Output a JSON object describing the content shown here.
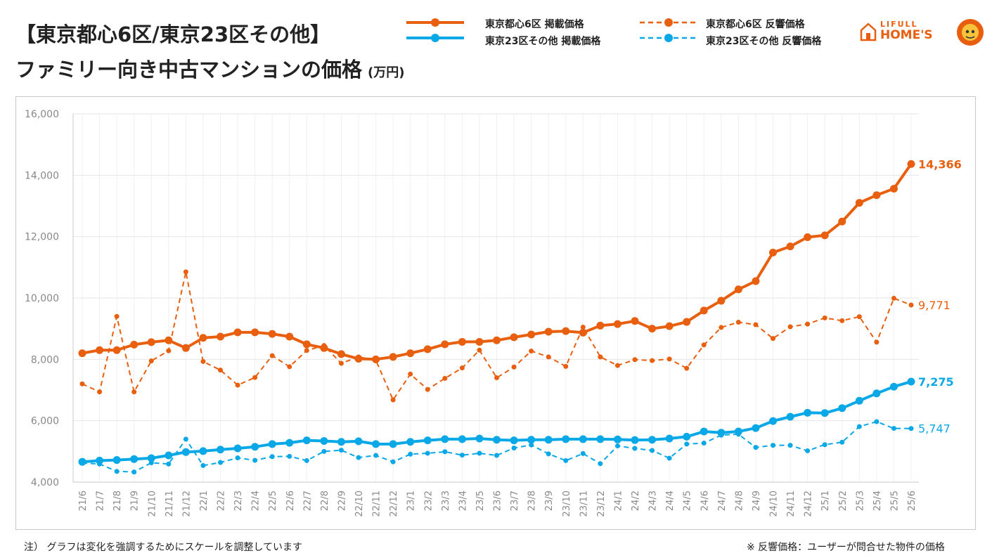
{
  "title_line1": "【東京都心6区/東京23区その他】",
  "title_line2": "ファミリー向き中古マンションの価格",
  "title_unit": "(万円)",
  "legend": {
    "s1": "東京都心6区 掲載価格",
    "s2": "東京23区その他 掲載価格",
    "s3": "東京都心6区 反響価格",
    "s4": "東京23区その他 反響価格"
  },
  "logo": {
    "text_small": "LIFULL",
    "text_large": "HOME'S"
  },
  "footnote_left": "注） グラフは変化を強調するためにスケールを調整しています",
  "footnote_right": "※ 反響価格：ユーザーが問合せた物件の価格",
  "colors": {
    "orange": "#e8600f",
    "blue": "#0aa8e6",
    "grid": "#e6e6e6",
    "axis": "#c9c9c9",
    "tick": "#888888"
  },
  "chart_data": {
    "type": "line",
    "ylim": [
      4000,
      16000
    ],
    "yticks": [
      "4,000",
      "6,000",
      "8,000",
      "10,000",
      "12,000",
      "14,000",
      "16,000"
    ],
    "ytick_values": [
      4000,
      6000,
      8000,
      10000,
      12000,
      14000,
      16000
    ],
    "categories": [
      "21/6",
      "21/7",
      "21/8",
      "21/9",
      "21/10",
      "21/11",
      "21/12",
      "22/1",
      "22/2",
      "22/3",
      "22/4",
      "22/5",
      "22/6",
      "22/7",
      "22/8",
      "22/9",
      "22/10",
      "22/11",
      "22/12",
      "23/1",
      "23/2",
      "23/3",
      "23/4",
      "23/5",
      "23/6",
      "23/7",
      "23/8",
      "23/9",
      "23/10",
      "23/11",
      "23/12",
      "24/1",
      "24/2",
      "24/3",
      "24/4",
      "24/5",
      "24/6",
      "24/7",
      "24/8",
      "24/9",
      "24/10",
      "24/11",
      "24/12",
      "25/1",
      "25/2",
      "25/3",
      "25/4",
      "25/5",
      "25/6"
    ],
    "series": [
      {
        "name": "東京都心6区 掲載価格",
        "color": "orange",
        "style": "solid",
        "end_label": "14,366",
        "values": [
          8200,
          8300,
          8300,
          8480,
          8560,
          8620,
          8370,
          8700,
          8740,
          8880,
          8880,
          8830,
          8740,
          8490,
          8370,
          8170,
          8020,
          8000,
          8080,
          8200,
          8330,
          8490,
          8570,
          8570,
          8620,
          8720,
          8810,
          8900,
          8920,
          8870,
          9100,
          9150,
          9250,
          9000,
          9080,
          9220,
          9590,
          9910,
          10280,
          10550,
          11480,
          11680,
          11980,
          12040,
          12490,
          13100,
          13350,
          13560,
          14366
        ]
      },
      {
        "name": "東京23区その他 掲載価格",
        "color": "blue",
        "style": "solid",
        "end_label": "7,275",
        "values": [
          4660,
          4700,
          4720,
          4750,
          4780,
          4870,
          4980,
          5010,
          5060,
          5100,
          5150,
          5240,
          5280,
          5360,
          5340,
          5310,
          5330,
          5240,
          5240,
          5310,
          5360,
          5400,
          5400,
          5420,
          5380,
          5360,
          5380,
          5380,
          5400,
          5400,
          5400,
          5390,
          5370,
          5380,
          5420,
          5480,
          5650,
          5610,
          5650,
          5760,
          5990,
          6130,
          6260,
          6250,
          6410,
          6650,
          6890,
          7110,
          7275
        ]
      },
      {
        "name": "東京都心6区 反響価格",
        "color": "orange",
        "style": "dashed",
        "end_label": "9,771",
        "values": [
          7200,
          6940,
          9400,
          6940,
          7950,
          8280,
          10850,
          7930,
          7650,
          7160,
          7410,
          8120,
          7760,
          8290,
          8450,
          7870,
          8080,
          7970,
          6680,
          7520,
          7020,
          7380,
          7720,
          8300,
          7400,
          7750,
          8270,
          8080,
          7770,
          9050,
          8080,
          7800,
          7990,
          7960,
          8010,
          7710,
          8470,
          9040,
          9210,
          9130,
          8680,
          9060,
          9150,
          9350,
          9260,
          9390,
          8560,
          9990,
          9771
        ]
      },
      {
        "name": "東京23区その他 反響価格",
        "color": "blue",
        "style": "dashed",
        "end_label": "5,747",
        "values": [
          4620,
          4590,
          4350,
          4330,
          4630,
          4590,
          5400,
          4540,
          4640,
          4790,
          4710,
          4830,
          4840,
          4700,
          5000,
          5040,
          4800,
          4870,
          4660,
          4910,
          4940,
          4990,
          4880,
          4940,
          4870,
          5110,
          5210,
          4920,
          4700,
          4930,
          4600,
          5180,
          5100,
          5030,
          4780,
          5240,
          5270,
          5530,
          5560,
          5130,
          5200,
          5200,
          5020,
          5220,
          5300,
          5810,
          5970,
          5750,
          5747
        ]
      }
    ]
  }
}
